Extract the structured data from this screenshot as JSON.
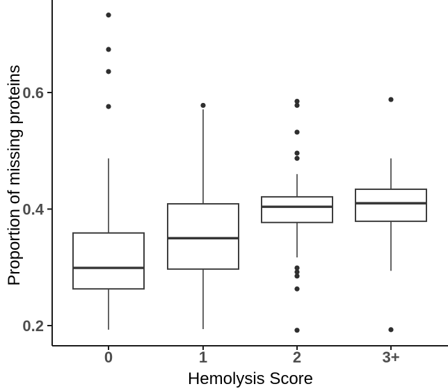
{
  "chart_data": {
    "type": "boxplot",
    "title": "",
    "xlabel": "Hemolysis Score",
    "ylabel": "Proportion of missing proteins",
    "categories": [
      "0",
      "1",
      "2",
      "3+"
    ],
    "yticks": [
      0.2,
      0.4,
      0.6
    ],
    "ytick_labels": [
      "0.2",
      "0.4",
      "0.6"
    ],
    "ylim": [
      0.165,
      0.76
    ],
    "grid": false,
    "legend": "none",
    "orientation": "vertical",
    "series": [
      {
        "category": "0",
        "whisker_low": 0.193,
        "q1": 0.263,
        "median": 0.299,
        "q3": 0.359,
        "whisker_high": 0.487,
        "outliers": [
          0.576,
          0.636,
          0.674,
          0.733
        ]
      },
      {
        "category": "1",
        "whisker_low": 0.194,
        "q1": 0.297,
        "median": 0.35,
        "q3": 0.409,
        "whisker_high": 0.571,
        "outliers": [
          0.578
        ]
      },
      {
        "category": "2",
        "whisker_low": 0.317,
        "q1": 0.377,
        "median": 0.404,
        "q3": 0.421,
        "whisker_high": 0.46,
        "outliers": [
          0.192,
          0.263,
          0.285,
          0.292,
          0.299,
          0.487,
          0.496,
          0.532,
          0.578,
          0.585
        ]
      },
      {
        "category": "3+",
        "whisker_low": 0.294,
        "q1": 0.379,
        "median": 0.41,
        "q3": 0.434,
        "whisker_high": 0.487,
        "outliers": [
          0.193,
          0.588
        ]
      }
    ],
    "colors": {
      "background": "#ffffff",
      "box_fill": "#ffffff",
      "box_stroke": "#3d3d3d",
      "median": "#353535",
      "whisker": "#525252",
      "outlier": "#2f2f2f",
      "axis": "#1a1a1a",
      "tick_label": "#4d4d4d",
      "axis_title": "#000000"
    }
  }
}
